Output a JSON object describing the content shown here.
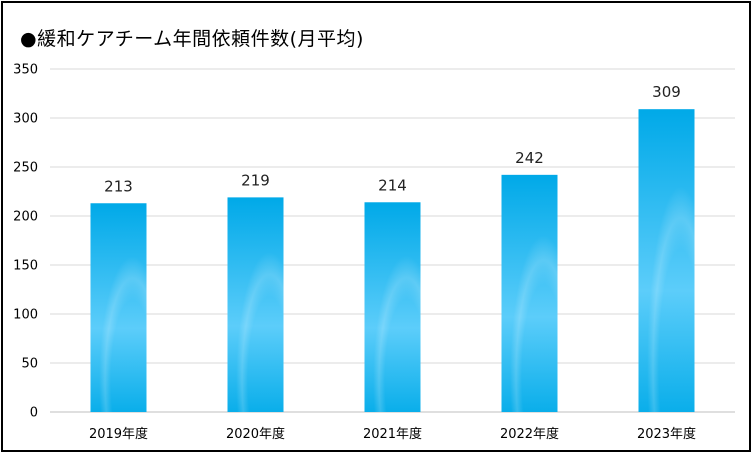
{
  "chart_data": {
    "type": "bar",
    "title": "●緩和ケアチーム年間依頼件数(月平均)",
    "categories": [
      "2019年度",
      "2020年度",
      "2021年度",
      "2022年度",
      "2023年度"
    ],
    "values": [
      213,
      219,
      214,
      242,
      309
    ],
    "ylim": [
      0,
      350
    ],
    "yticks": [
      0,
      50,
      100,
      150,
      200,
      250,
      300,
      350
    ],
    "grid": true,
    "data_labels": true,
    "bar_color_top": "#00A9E8",
    "bar_color_mid": "#5CCDFA",
    "bar_color_bottom": "#0AAEEA"
  }
}
